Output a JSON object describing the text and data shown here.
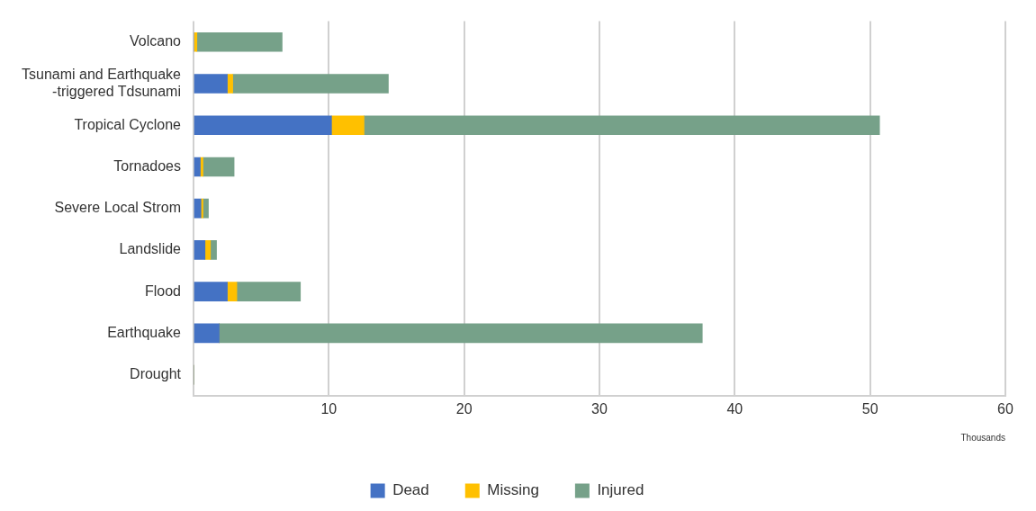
{
  "chart_data": {
    "type": "bar",
    "orientation": "horizontal",
    "stacked": true,
    "categories": [
      "Volcano",
      "Tsunami and Earthquake\n-triggered Tdsunami",
      "Tropical Cyclone",
      "Tornadoes",
      "Severe Local Strom",
      "Landslide",
      "Flood",
      "Earthquake",
      "Drought"
    ],
    "series": [
      {
        "name": "Dead",
        "color": "#4472c4",
        "values": [
          0,
          2.5,
          10.2,
          0.5,
          0.55,
          0.85,
          2.5,
          1.9,
          0
        ]
      },
      {
        "name": "Missing",
        "color": "#ffc000",
        "values": [
          0.25,
          0.4,
          2.4,
          0.2,
          0.15,
          0.4,
          0.7,
          0,
          0
        ]
      },
      {
        "name": "Injured",
        "color": "#76a189",
        "values": [
          6.3,
          11.5,
          38.1,
          2.3,
          0.4,
          0.45,
          4.7,
          35.7,
          0
        ]
      }
    ],
    "xlabel": "Thousands",
    "xlim": [
      0,
      60
    ],
    "xticks": [
      {
        "value": 0,
        "label": null
      },
      10,
      20,
      30,
      40,
      50,
      60
    ],
    "grid": "x",
    "legend": "bottom"
  }
}
